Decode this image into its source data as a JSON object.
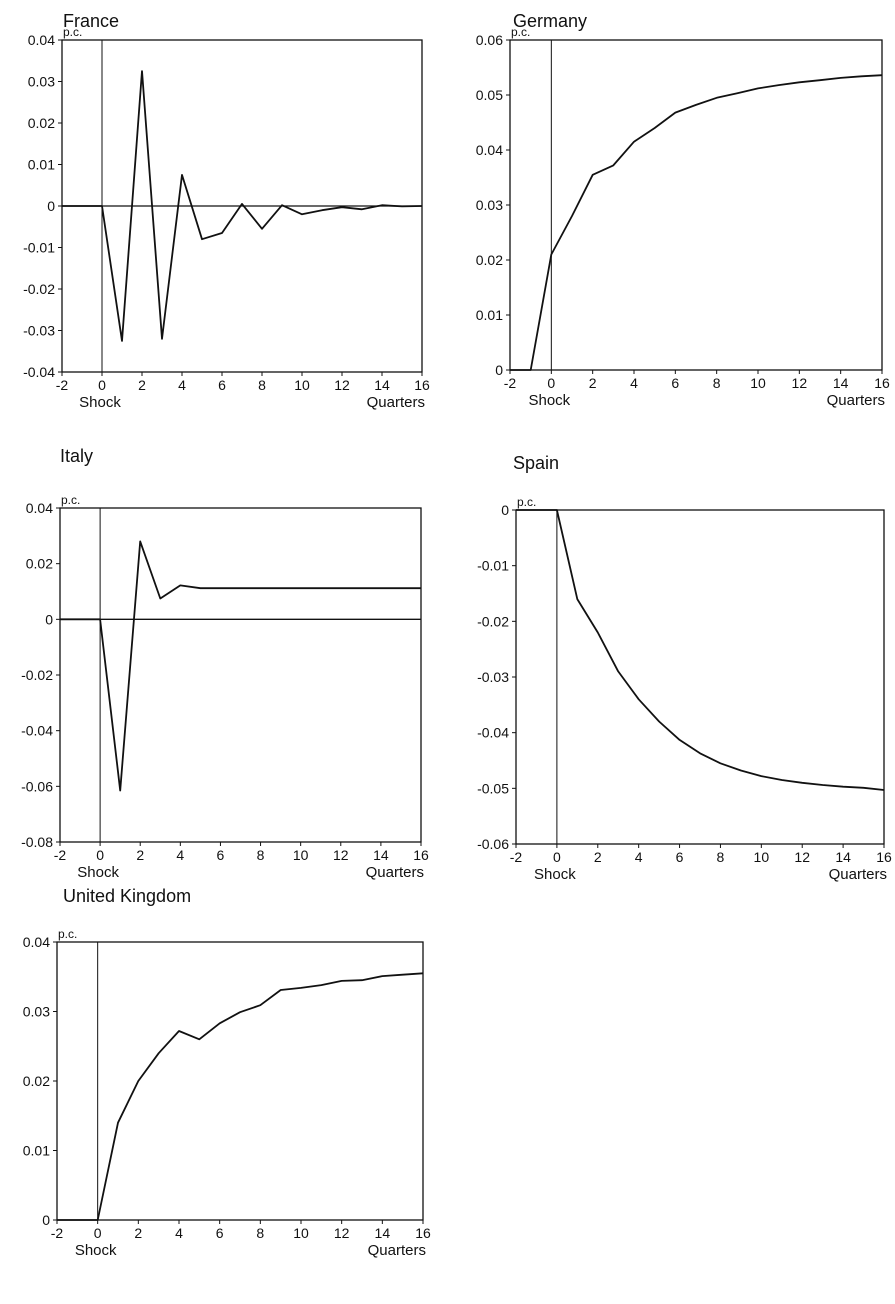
{
  "figure": {
    "charts": [
      {
        "id": "france",
        "title": "France"
      },
      {
        "id": "germany",
        "title": "Germany"
      },
      {
        "id": "italy",
        "title": "Italy"
      },
      {
        "id": "spain",
        "title": "Spain"
      },
      {
        "id": "uk",
        "title": "United Kingdom"
      }
    ]
  },
  "chart_data": [
    {
      "type": "line",
      "title": "France",
      "ylabel": "p.c.",
      "xlabel": "Quarters",
      "x_annotation": "Shock",
      "xlim": [
        -2,
        16
      ],
      "ylim": [
        -0.04,
        0.04
      ],
      "xticks": [
        -2,
        0,
        2,
        4,
        6,
        8,
        10,
        12,
        14,
        16
      ],
      "yticks": [
        0.04,
        0.03,
        0.02,
        0.01,
        0,
        -0.01,
        -0.02,
        -0.03,
        -0.04
      ],
      "ytick_labels": [
        "0.04",
        "0.03",
        "0.02",
        "0.01",
        "0",
        "-0.01",
        "-0.02",
        "-0.03",
        "-0.04"
      ],
      "zero_line": true,
      "shock_line_x": 0,
      "grid": false,
      "series": [
        {
          "x": [
            -2,
            -1,
            0,
            1,
            2,
            3,
            4,
            5,
            6,
            7,
            8,
            9,
            10,
            11,
            12,
            13,
            14,
            15,
            16
          ],
          "y": [
            0,
            0,
            0,
            -0.0325,
            0.0325,
            -0.032,
            0.0075,
            -0.008,
            -0.0065,
            0.0005,
            -0.0055,
            0.0002,
            -0.002,
            -0.001,
            -0.0003,
            -0.0008,
            0.0002,
            -0.0001,
            0
          ]
        }
      ]
    },
    {
      "type": "line",
      "title": "Germany",
      "ylabel": "p.c.",
      "xlabel": "Quarters",
      "x_annotation": "Shock",
      "xlim": [
        -2,
        16
      ],
      "ylim": [
        0,
        0.06
      ],
      "xticks": [
        -2,
        0,
        2,
        4,
        6,
        8,
        10,
        12,
        14,
        16
      ],
      "yticks": [
        0.06,
        0.05,
        0.04,
        0.03,
        0.02,
        0.01,
        0
      ],
      "ytick_labels": [
        "0.06",
        "0.05",
        "0.04",
        "0.03",
        "0.02",
        "0.01",
        "0"
      ],
      "zero_line": false,
      "shock_line_x": 0,
      "grid": false,
      "series": [
        {
          "x": [
            -2,
            -1,
            0,
            1,
            2,
            3,
            4,
            5,
            6,
            7,
            8,
            9,
            10,
            11,
            12,
            13,
            14,
            15,
            16
          ],
          "y": [
            0,
            0,
            0.021,
            0.028,
            0.0355,
            0.0372,
            0.0415,
            0.044,
            0.0468,
            0.0482,
            0.0495,
            0.0503,
            0.0512,
            0.0518,
            0.0523,
            0.0527,
            0.0531,
            0.0534,
            0.0536
          ]
        }
      ]
    },
    {
      "type": "line",
      "title": "Italy",
      "ylabel": "p.c.",
      "xlabel": "Quarters",
      "x_annotation": "Shock",
      "xlim": [
        -2,
        16
      ],
      "ylim": [
        -0.08,
        0.04
      ],
      "xticks": [
        -2,
        0,
        2,
        4,
        6,
        8,
        10,
        12,
        14,
        16
      ],
      "yticks": [
        0.04,
        0.02,
        0,
        -0.02,
        -0.04,
        -0.06,
        -0.08
      ],
      "ytick_labels": [
        "0.04",
        "0.02",
        "0",
        "-0.02",
        "-0.04",
        "-0.06",
        "-0.08"
      ],
      "zero_line": true,
      "shock_line_x": 0,
      "grid": false,
      "series": [
        {
          "x": [
            -2,
            -1,
            0,
            1,
            2,
            3,
            4,
            5,
            6,
            7,
            8,
            9,
            10,
            11,
            12,
            13,
            14,
            15,
            16
          ],
          "y": [
            0,
            0,
            0,
            -0.0615,
            0.028,
            0.0075,
            0.0122,
            0.0112,
            0.0112,
            0.0112,
            0.0112,
            0.0112,
            0.0112,
            0.0112,
            0.0112,
            0.0112,
            0.0112,
            0.0112,
            0.0112
          ]
        }
      ]
    },
    {
      "type": "line",
      "title": "Spain",
      "ylabel": "p.c.",
      "xlabel": "Quarters",
      "x_annotation": "Shock",
      "xlim": [
        -2,
        16
      ],
      "ylim": [
        -0.06,
        0
      ],
      "xticks": [
        -2,
        0,
        2,
        4,
        6,
        8,
        10,
        12,
        14,
        16
      ],
      "yticks": [
        0,
        -0.01,
        -0.02,
        -0.03,
        -0.04,
        -0.05,
        -0.06
      ],
      "ytick_labels": [
        "0",
        "-0.01",
        "-0.02",
        "-0.03",
        "-0.04",
        "-0.05",
        "-0.06"
      ],
      "zero_line": false,
      "shock_line_x": 0,
      "grid": false,
      "series": [
        {
          "x": [
            -2,
            -1,
            0,
            1,
            2,
            3,
            4,
            5,
            6,
            7,
            8,
            9,
            10,
            11,
            12,
            13,
            14,
            15,
            16
          ],
          "y": [
            0,
            0,
            0,
            -0.016,
            -0.022,
            -0.029,
            -0.034,
            -0.038,
            -0.0413,
            -0.0437,
            -0.0455,
            -0.0468,
            -0.0478,
            -0.0485,
            -0.049,
            -0.0494,
            -0.0497,
            -0.0499,
            -0.0503
          ]
        }
      ]
    },
    {
      "type": "line",
      "title": "United Kingdom",
      "ylabel": "p.c.",
      "xlabel": "Quarters",
      "x_annotation": "Shock",
      "xlim": [
        -2,
        16
      ],
      "ylim": [
        0,
        0.04
      ],
      "xticks": [
        -2,
        0,
        2,
        4,
        6,
        8,
        10,
        12,
        14,
        16
      ],
      "yticks": [
        0.04,
        0.03,
        0.02,
        0.01,
        0
      ],
      "ytick_labels": [
        "0.04",
        "0.03",
        "0.02",
        "0.01",
        "0"
      ],
      "zero_line": false,
      "shock_line_x": 0,
      "grid": false,
      "series": [
        {
          "x": [
            -2,
            -1,
            0,
            1,
            2,
            3,
            4,
            5,
            6,
            7,
            8,
            9,
            10,
            11,
            12,
            13,
            14,
            15,
            16
          ],
          "y": [
            0,
            0,
            0,
            0.014,
            0.02,
            0.024,
            0.0272,
            0.026,
            0.0283,
            0.0299,
            0.0309,
            0.0331,
            0.0334,
            0.0338,
            0.0344,
            0.0345,
            0.0351,
            0.0353,
            0.0355
          ]
        }
      ]
    }
  ]
}
